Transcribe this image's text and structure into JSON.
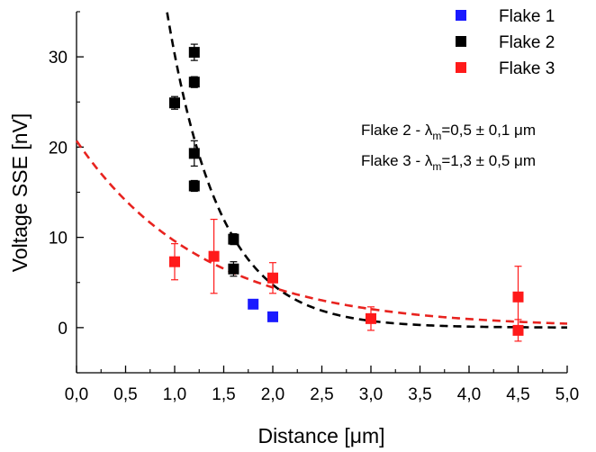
{
  "chart_data": {
    "type": "scatter",
    "xlabel": "Distance [μm]",
    "ylabel": "Voltage SSE [nV]",
    "xlim": [
      0,
      5
    ],
    "ylim": [
      -5,
      35
    ],
    "x_ticks": [
      "0,0",
      "0,5",
      "1,0",
      "1,5",
      "2,0",
      "2,5",
      "3,0",
      "3,5",
      "4,0",
      "4,5",
      "5,0"
    ],
    "y_ticks": [
      "0",
      "10",
      "20",
      "30"
    ],
    "grid": false,
    "legend_position": "top-right",
    "series": [
      {
        "name": "Flake 1",
        "color": "#1a1aff",
        "points": [
          {
            "x": 1.8,
            "y": 2.6,
            "err": 0
          },
          {
            "x": 2.0,
            "y": 1.2,
            "err": 0
          }
        ]
      },
      {
        "name": "Flake 2",
        "color": "#000000",
        "points": [
          {
            "x": 1.0,
            "y": 24.9,
            "err": 0.7
          },
          {
            "x": 1.2,
            "y": 30.5,
            "err": 0.9
          },
          {
            "x": 1.2,
            "y": 27.2,
            "err": 0.6
          },
          {
            "x": 1.2,
            "y": 19.3,
            "err": 1.4
          },
          {
            "x": 1.2,
            "y": 15.7,
            "err": 0.6
          },
          {
            "x": 1.6,
            "y": 9.8,
            "err": 0.6
          },
          {
            "x": 1.6,
            "y": 6.5,
            "err": 0.8
          }
        ]
      },
      {
        "name": "Flake 3",
        "color": "#ff1a1a",
        "points": [
          {
            "x": 1.0,
            "y": 7.3,
            "err": 2.0
          },
          {
            "x": 1.4,
            "y": 7.9,
            "err": 4.1
          },
          {
            "x": 2.0,
            "y": 5.5,
            "err": 1.7
          },
          {
            "x": 3.0,
            "y": 1.0,
            "err": 1.3
          },
          {
            "x": 4.5,
            "y": 3.4,
            "err": 3.4
          },
          {
            "x": 4.5,
            "y": -0.3,
            "err": 1.2
          }
        ]
      }
    ],
    "fits": [
      {
        "series": "Flake 2",
        "color": "#000000",
        "style": "dashed",
        "form": "exponential decay",
        "amplitude": 193,
        "decay_length": 0.54,
        "offset": 0
      },
      {
        "series": "Flake 3",
        "color": "#e8231f",
        "style": "dashed",
        "form": "exponential decay",
        "amplitude": 20.7,
        "decay_length": 1.3,
        "offset": 0
      }
    ],
    "annotations": [
      {
        "parts": [
          "Flake 2 - λ",
          "m",
          "=0,5 ± 0,1 μm"
        ]
      },
      {
        "parts": [
          "Flake 3 - λ",
          "m",
          "=1,3 ± 0,5 μm"
        ]
      }
    ]
  }
}
